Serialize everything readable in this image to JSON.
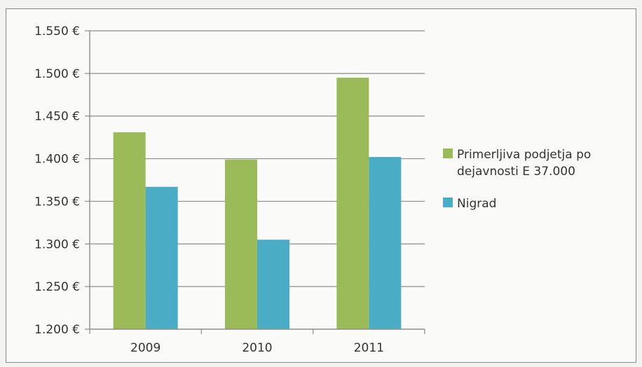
{
  "chart_data": {
    "type": "bar",
    "title": "",
    "xlabel": "",
    "ylabel": "",
    "categories": [
      "2009",
      "2010",
      "2011"
    ],
    "ylim": [
      1200,
      1550
    ],
    "yticks": [
      1200,
      1250,
      1300,
      1350,
      1400,
      1450,
      1500,
      1550
    ],
    "ytick_labels": [
      "1.200 €",
      "1.250 €",
      "1.300 €",
      "1.350 €",
      "1.400 €",
      "1.450 €",
      "1.500 €",
      "1.550 €"
    ],
    "grid": true,
    "legend_position": "right",
    "series": [
      {
        "name": "Primerljiva podjetja po dejavnosti E 37.000",
        "legend_lines": [
          "Primerljiva podjetja po",
          "dejavnosti E 37.000"
        ],
        "color": "#9bbb59",
        "values": [
          1431,
          1399,
          1495
        ]
      },
      {
        "name": "Nigrad",
        "legend_lines": [
          "Nigrad"
        ],
        "color": "#4bacc6",
        "values": [
          1367,
          1305,
          1402
        ]
      }
    ]
  }
}
